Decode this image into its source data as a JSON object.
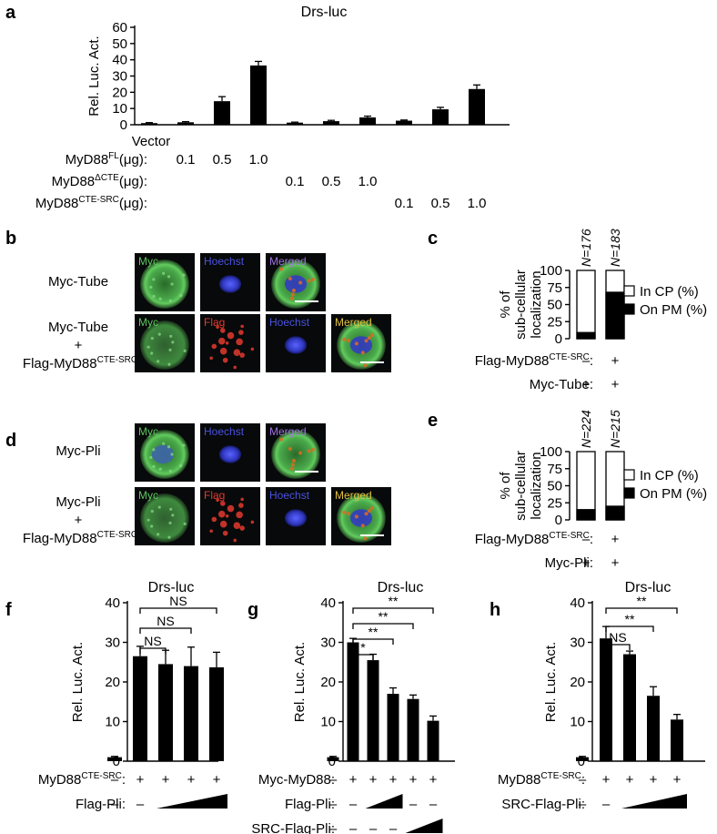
{
  "panel_letters": [
    "a",
    "b",
    "c",
    "d",
    "e",
    "f",
    "g",
    "h"
  ],
  "chart_data": [
    {
      "panel": "a",
      "type": "bar",
      "title": "Drs-luc",
      "ylabel": "Rel. Luc. Act.",
      "ylim": [
        0,
        60
      ],
      "yticks": [
        0,
        10,
        20,
        30,
        40,
        50,
        60
      ],
      "values": [
        1.0,
        1.5,
        14.5,
        36.5,
        1.3,
        2.2,
        4.5,
        2.5,
        9.5,
        22.0
      ],
      "errors": [
        0.3,
        0.4,
        2.8,
        2.5,
        0.3,
        0.5,
        0.8,
        0.4,
        1.2,
        2.5
      ],
      "first_label": "Vector",
      "rows": [
        {
          "base": "MyD88",
          "sup": "FL",
          "unit": "(μg):",
          "cells": [
            "",
            "0.1",
            "0.5",
            "1.0",
            "",
            "",
            "",
            "",
            "",
            ""
          ]
        },
        {
          "base": "MyD88",
          "sup": "ΔCTE",
          "unit": "(μg):",
          "cells": [
            "",
            "",
            "",
            "",
            "0.1",
            "0.5",
            "1.0",
            "",
            "",
            ""
          ]
        },
        {
          "base": "MyD88",
          "sup": "CTE-SRC",
          "unit": "(μg):",
          "cells": [
            "",
            "",
            "",
            "",
            "",
            "",
            "",
            "0.1",
            "0.5",
            "1.0"
          ]
        }
      ]
    },
    {
      "panel": "c",
      "type": "bar",
      "stacked": true,
      "ylabel_lines": [
        "% of",
        "sub-cellular",
        "localization"
      ],
      "ylim": [
        0,
        100
      ],
      "yticks": [
        0,
        25,
        50,
        75,
        100
      ],
      "n_labels": [
        "N=176",
        "N=183"
      ],
      "series": [
        {
          "name": "In CP (%)",
          "color": "#ffffff",
          "values": [
            91,
            32
          ]
        },
        {
          "name": "On PM (%)",
          "color": "#000000",
          "values": [
            9,
            68
          ]
        }
      ],
      "rows": [
        {
          "base": "Flag-MyD88",
          "sup": "CTE-SRC",
          "unit": ":",
          "cells": [
            "–",
            "+"
          ]
        },
        {
          "base": "Myc-Tube:",
          "sup": "",
          "unit": "",
          "cells": [
            "+",
            "+"
          ]
        }
      ]
    },
    {
      "panel": "e",
      "type": "bar",
      "stacked": true,
      "ylabel_lines": [
        "% of",
        "sub-cellular",
        "localization"
      ],
      "ylim": [
        0,
        100
      ],
      "yticks": [
        0,
        25,
        50,
        75,
        100
      ],
      "n_labels": [
        "N=224",
        "N=215"
      ],
      "series": [
        {
          "name": "In CP (%)",
          "color": "#ffffff",
          "values": [
            85,
            80
          ]
        },
        {
          "name": "On PM (%)",
          "color": "#000000",
          "values": [
            15,
            20
          ]
        }
      ],
      "rows": [
        {
          "base": "Flag-MyD88",
          "sup": "CTE-SRC",
          "unit": ":",
          "cells": [
            "–",
            "+"
          ]
        },
        {
          "base": "Myc-Pli:",
          "sup": "",
          "unit": "",
          "cells": [
            "+",
            "+"
          ]
        }
      ]
    },
    {
      "panel": "f",
      "type": "bar",
      "title": "Drs-luc",
      "ylabel": "Rel. Luc. Act.",
      "ylim": [
        0,
        40
      ],
      "yticks": [
        0,
        10,
        20,
        30,
        40
      ],
      "values": [
        1.0,
        26.5,
        24.5,
        24.0,
        23.7
      ],
      "errors": [
        0.2,
        2.5,
        3.5,
        4.8,
        3.8
      ],
      "sig": [
        {
          "from": 1,
          "to": 2,
          "label": "NS"
        },
        {
          "from": 1,
          "to": 3,
          "label": "NS"
        },
        {
          "from": 1,
          "to": 4,
          "label": "NS"
        }
      ],
      "rows": [
        {
          "base": "MyD88",
          "sup": "CTE-SRC",
          "unit": ":",
          "cells": [
            "–",
            "+",
            "+",
            "+",
            "+"
          ]
        },
        {
          "base": "Flag-Pli:",
          "sup": "",
          "unit": "",
          "cells": [
            "–",
            "–"
          ],
          "ramp_from": 2,
          "ramp_to": 4
        }
      ]
    },
    {
      "panel": "g",
      "type": "bar",
      "title": "Drs-luc",
      "ylabel": "Rel. Luc. Act.",
      "ylim": [
        0,
        40
      ],
      "yticks": [
        0,
        10,
        20,
        30,
        40
      ],
      "values": [
        1.0,
        30.0,
        25.5,
        17.0,
        15.7,
        10.2
      ],
      "errors": [
        0.2,
        1.0,
        1.5,
        1.5,
        1.0,
        1.2
      ],
      "sig": [
        {
          "from": 1,
          "to": 2,
          "label": "*"
        },
        {
          "from": 1,
          "to": 3,
          "label": "**"
        },
        {
          "from": 1,
          "to": 4,
          "label": "**"
        },
        {
          "from": 1,
          "to": 5,
          "label": "**"
        }
      ],
      "rows": [
        {
          "base": "Myc-MyD88:",
          "sup": "",
          "unit": "",
          "cells": [
            "–",
            "+",
            "+",
            "+",
            "+",
            "+"
          ]
        },
        {
          "base": "Flag-Pli:",
          "sup": "",
          "unit": "",
          "cells": [
            "–",
            "–",
            "",
            "",
            "–",
            "–"
          ],
          "ramp_from": 2,
          "ramp_to": 3
        },
        {
          "base": "SRC-Flag-Pli:",
          "sup": "",
          "unit": "",
          "cells": [
            "–",
            "–",
            "–",
            "–"
          ],
          "ramp_from": 4,
          "ramp_to": 5
        }
      ]
    },
    {
      "panel": "h",
      "type": "bar",
      "title": "Drs-luc",
      "ylabel": "Rel. Luc. Act.",
      "ylim": [
        0,
        40
      ],
      "yticks": [
        0,
        10,
        20,
        30,
        40
      ],
      "values": [
        1.0,
        31.0,
        27.0,
        16.5,
        10.5
      ],
      "errors": [
        0.2,
        3.0,
        0.8,
        2.3,
        1.3
      ],
      "sig": [
        {
          "from": 1,
          "to": 2,
          "label": "NS"
        },
        {
          "from": 1,
          "to": 3,
          "label": "**"
        },
        {
          "from": 1,
          "to": 4,
          "label": "**"
        }
      ],
      "rows": [
        {
          "base": "MyD88",
          "sup": "CTE-SRC",
          "unit": ":",
          "cells": [
            "–",
            "+",
            "+",
            "+",
            "+"
          ]
        },
        {
          "base": "SRC-Flag-Pli:",
          "sup": "",
          "unit": "",
          "cells": [
            "–",
            "–"
          ],
          "ramp_from": 2,
          "ramp_to": 4
        }
      ]
    }
  ],
  "micrographs": [
    {
      "panel": "b",
      "rows": [
        {
          "condition": [
            "Myc-Tube"
          ],
          "sup_line": null,
          "channels": [
            "Myc",
            "Hoechst",
            "Merged"
          ],
          "nucleus": [
            false,
            true,
            true
          ]
        },
        {
          "condition": [
            "Myc-Tube",
            "+"
          ],
          "sup_line": {
            "base": "Flag-MyD88",
            "sup": "CTE-SRC"
          },
          "channels": [
            "Myc",
            "Flag",
            "Hoechst",
            "Merged"
          ],
          "nucleus": [
            false,
            false,
            true,
            true
          ]
        }
      ]
    },
    {
      "panel": "d",
      "rows": [
        {
          "condition": [
            "Myc-Pli"
          ],
          "sup_line": null,
          "channels": [
            "Myc",
            "Hoechst",
            "Merged"
          ],
          "nucleus": [
            true,
            true,
            false
          ]
        },
        {
          "condition": [
            "Myc-Pli",
            "+"
          ],
          "sup_line": {
            "base": "Flag-MyD88",
            "sup": "CTE-SRC"
          },
          "channels": [
            "Myc",
            "Flag",
            "Hoechst",
            "Merged"
          ],
          "nucleus": [
            false,
            false,
            true,
            true
          ]
        }
      ]
    }
  ],
  "colors": {
    "Myc": "#5ec85e",
    "Flag": "#e33a2e",
    "Hoechst": "#4a52e0",
    "Merged": "#9090e8",
    "Merged_label_b1": "#a070e0",
    "Merged_label_4ch": "#e0c040",
    "bar": "#000000"
  }
}
